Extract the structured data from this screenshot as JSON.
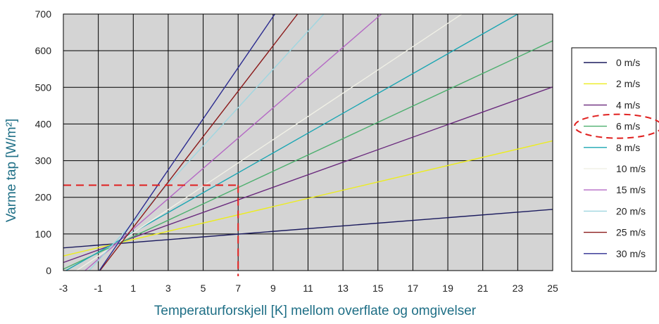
{
  "chart_data": {
    "type": "line",
    "title": "",
    "xlabel": "Temperaturforskjell [K] mellom overflate og omgivelser",
    "ylabel": "Varme tap [W/m²]",
    "xlim": [
      -3,
      25
    ],
    "ylim": [
      0,
      700
    ],
    "x_ticks": [
      "-3",
      "-1",
      "1",
      "3",
      "5",
      "7",
      "9",
      "11",
      "13",
      "15",
      "17",
      "19",
      "21",
      "23",
      "25"
    ],
    "y_ticks": [
      "0",
      "100",
      "200",
      "300",
      "400",
      "500",
      "600",
      "700"
    ],
    "grid": true,
    "legend_position": "right",
    "plot_background": "#d4d4d4",
    "series": [
      {
        "name": "0 m/s",
        "color": "#1b1b5e",
        "x": [
          -3,
          25
        ],
        "y": [
          62,
          167
        ]
      },
      {
        "name": "2 m/s",
        "color": "#ecec1e",
        "x": [
          -3,
          25
        ],
        "y": [
          40,
          354
        ]
      },
      {
        "name": "4 m/s",
        "color": "#6a2a7d",
        "x": [
          -3,
          25
        ],
        "y": [
          22,
          501
        ]
      },
      {
        "name": "6 m/s",
        "color": "#4caf6e",
        "x": [
          -3,
          25
        ],
        "y": [
          4,
          627
        ]
      },
      {
        "name": "8 m/s",
        "color": "#1ba6b3",
        "x": [
          -3,
          23
        ],
        "y": [
          -4,
          700
        ]
      },
      {
        "name": "10 m/s",
        "color": "#f0f0e6",
        "x": [
          -2.5,
          19.8
        ],
        "y": [
          -8,
          700
        ]
      },
      {
        "name": "15 m/s",
        "color": "#b469c4",
        "x": [
          -2,
          15.2
        ],
        "y": [
          -10,
          700
        ]
      },
      {
        "name": "20 m/s",
        "color": "#9fd6e0",
        "x": [
          -1.8,
          11.9
        ],
        "y": [
          -14,
          700
        ]
      },
      {
        "name": "25 m/s",
        "color": "#8b1a1a",
        "x": [
          -1.1,
          10.4
        ],
        "y": [
          -12,
          700
        ]
      },
      {
        "name": "30 m/s",
        "color": "#2b2b8f",
        "x": [
          -1.2,
          9.1
        ],
        "y": [
          -18,
          700
        ]
      }
    ],
    "highlight": {
      "legend_entry": "6 m/s",
      "x": 7,
      "y": 233,
      "color": "#e0201f"
    }
  }
}
